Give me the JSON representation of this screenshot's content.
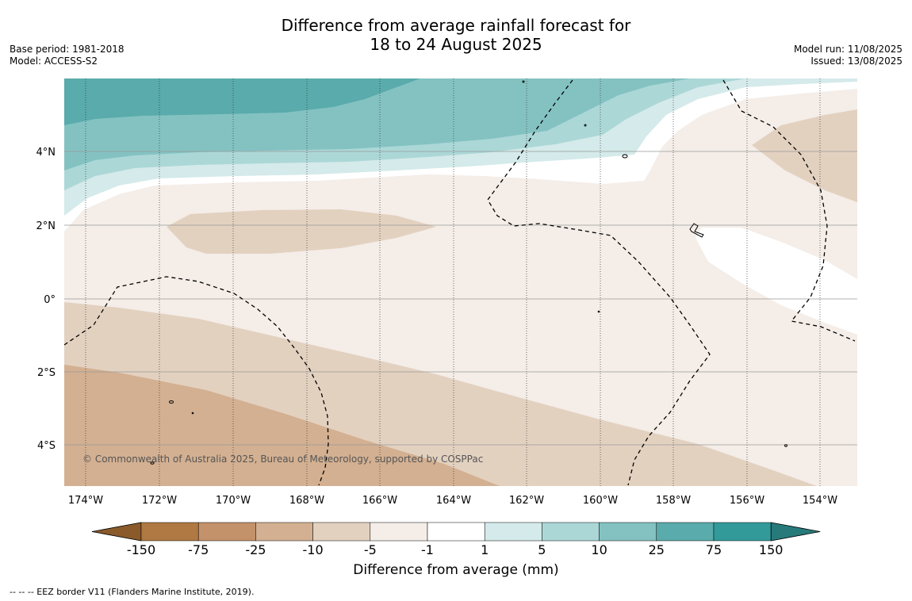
{
  "title_line1": "Difference from average rainfall forecast for",
  "title_line2": "18 to 24 August 2025",
  "base_period": "Base period: 1981-2018",
  "model": "Model: ACCESS-S2",
  "model_run": "Model run: 11/08/2025",
  "issued": "Issued: 13/08/2025",
  "copyright": "© Commonwealth of Australia 2025, Bureau of Meteorology, supported by COSPPac",
  "footnote": "--  --  -- EEZ border V11 (Flanders Marine Institute, 2019).",
  "lon_labels": [
    "174°W",
    "172°W",
    "170°W",
    "168°W",
    "166°W",
    "164°W",
    "162°W",
    "160°W",
    "158°W",
    "156°W",
    "154°W"
  ],
  "lat_labels": [
    "4°N",
    "2°N",
    "0°",
    "2°S",
    "4°S"
  ],
  "colorbar": {
    "label": "Difference from average (mm)",
    "ticks": [
      "-150",
      "-75",
      "-25",
      "-10",
      "-5",
      "-1",
      "1",
      "5",
      "10",
      "25",
      "75",
      "150"
    ],
    "colors": [
      "#8a5a2b",
      "#b07842",
      "#c4926a",
      "#d3b091",
      "#e3d1c0",
      "#f4ede8",
      "#ffffff",
      "#d5eaea",
      "#acd7d7",
      "#84c2c2",
      "#5aabab",
      "#339a9a",
      "#277a7a"
    ]
  }
}
